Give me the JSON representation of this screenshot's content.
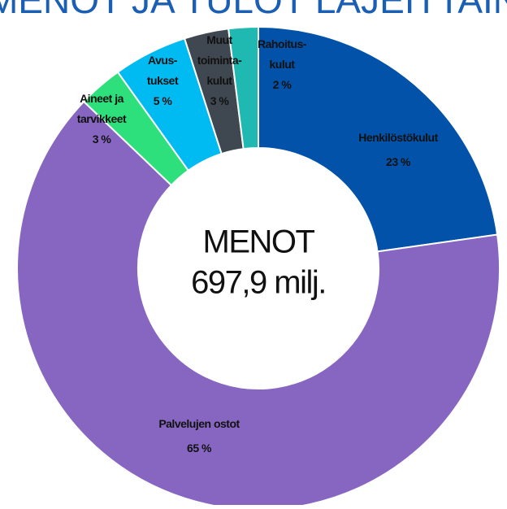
{
  "chart_data": {
    "type": "donut",
    "title": "MENOT JA TULOT LAJEITTAIN",
    "center_text": [
      "MENOT",
      "697,9 milj."
    ],
    "categories": [
      [
        "Henkilöstökulut"
      ],
      [
        "Palvelujen ostot"
      ],
      [
        "Aineet ja",
        "tarvikkeet"
      ],
      [
        "Avus-",
        "tukset"
      ],
      [
        "Muut",
        "toiminta-",
        "kulut"
      ],
      [
        "Rahoitus-",
        "kulut"
      ]
    ],
    "values": [
      23,
      65,
      3,
      5,
      3,
      2
    ],
    "value_labels": [
      "23 %",
      "65 %",
      "3 %",
      "5 %",
      "3 %",
      "2 %"
    ],
    "colors": [
      "#0152a8",
      "#8766c2",
      "#2de07c",
      "#00baf2",
      "#3f4750",
      "#1fb9b2"
    ]
  }
}
